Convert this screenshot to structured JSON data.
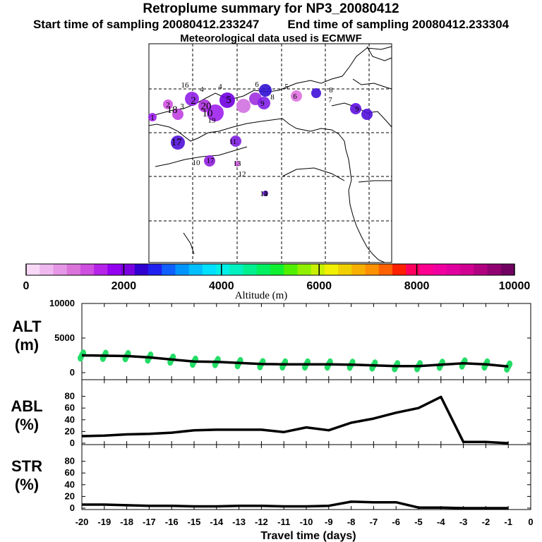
{
  "header": {
    "title": "Retroplume summary for NP3_20080412",
    "start_label": "Start time of sampling 20080412.233247",
    "end_label": "End time of sampling 20080412.233304",
    "met_label": "Meteorological data used is ECMWF"
  },
  "colorbar": {
    "ticks": [
      "0",
      "2000",
      "4000",
      "6000",
      "8000",
      "10000"
    ],
    "label": "Altitude (m)",
    "colors": [
      "#f7d9f7",
      "#efb9ef",
      "#e597e5",
      "#da74da",
      "#cf4fe0",
      "#b524e8",
      "#9400f0",
      "#7a00e0",
      "#3000d0",
      "#2020f0",
      "#1060ff",
      "#0094ff",
      "#00bfff",
      "#00e0ff",
      "#00f0e8",
      "#00f0c0",
      "#00f090",
      "#00f060",
      "#10f030",
      "#50f000",
      "#90f000",
      "#c8f000",
      "#f0f000",
      "#f0d000",
      "#f8b000",
      "#ff9000",
      "#ff6000",
      "#ff2000",
      "#ff0060",
      "#ff0090",
      "#f000a0",
      "#e000a0",
      "#d00090",
      "#b00080",
      "#900070",
      "#700060"
    ]
  },
  "map": {
    "labels": [
      "1",
      "2",
      "3",
      "4",
      "5",
      "6",
      "7",
      "8",
      "9",
      "10",
      "11",
      "12",
      "13",
      "14",
      "15",
      "16",
      "17",
      "18",
      "19",
      "20"
    ]
  },
  "chart_data": [
    {
      "type": "line",
      "name": "ALT",
      "ylabel": "ALT",
      "yunit": "(m)",
      "ylim": [
        0,
        10000
      ],
      "yticks": [
        "10000",
        "5000",
        "0"
      ],
      "x": [
        -20,
        -19,
        -18,
        -17,
        -16,
        -15,
        -14,
        -13,
        -12,
        -11,
        -10,
        -9,
        -8,
        -7,
        -6,
        -5,
        -4,
        -3,
        -2,
        -1
      ],
      "values": [
        2500,
        2450,
        2400,
        2200,
        1900,
        1600,
        1550,
        1400,
        1250,
        1200,
        1200,
        1200,
        1150,
        1050,
        950,
        950,
        1150,
        1350,
        1200,
        900
      ],
      "scatter_color": "#22dd66"
    },
    {
      "type": "line",
      "name": "ABL",
      "ylabel": "ABL",
      "yunit": "(%)",
      "ylim": [
        0,
        100
      ],
      "yticks": [
        "80",
        "60",
        "40",
        "20",
        "0"
      ],
      "x": [
        -20,
        -19,
        -18,
        -17,
        -16,
        -15,
        -14,
        -13,
        -12,
        -11,
        -10,
        -9,
        -8,
        -7,
        -6,
        -5,
        -4,
        -3,
        -2,
        -1
      ],
      "values": [
        12,
        13,
        15,
        16,
        18,
        22,
        23,
        23,
        23,
        19,
        27,
        22,
        35,
        42,
        52,
        60,
        79,
        2,
        2,
        0
      ]
    },
    {
      "type": "line",
      "name": "STR",
      "ylabel": "STR",
      "yunit": "(%)",
      "ylim": [
        0,
        100
      ],
      "yticks": [
        "80",
        "60",
        "40",
        "20",
        "0"
      ],
      "x": [
        -20,
        -19,
        -18,
        -17,
        -16,
        -15,
        -14,
        -13,
        -12,
        -11,
        -10,
        -9,
        -8,
        -7,
        -6,
        -5,
        -4,
        -3,
        -2,
        -1
      ],
      "values": [
        6,
        6,
        5,
        4,
        4,
        3,
        3,
        4,
        4,
        3,
        3,
        4,
        11,
        10,
        10,
        1,
        1,
        0,
        0,
        0
      ]
    }
  ],
  "xaxis": {
    "ticks": [
      "-20",
      "-19",
      "-18",
      "-17",
      "-16",
      "-15",
      "-14",
      "-13",
      "-12",
      "-11",
      "-10",
      "-9",
      "-8",
      "-7",
      "-6",
      "-5",
      "-4",
      "-3",
      "-2",
      "-1",
      "0"
    ],
    "label": "Travel time (days)"
  }
}
